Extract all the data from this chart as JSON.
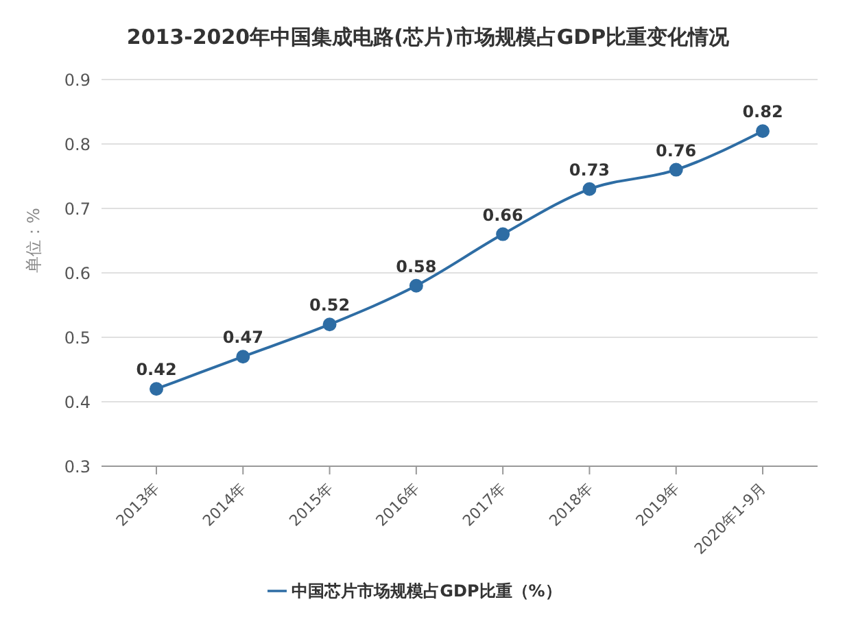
{
  "chart_data": {
    "type": "line",
    "title": "2013-2020年中国集成电路(芯片)市场规模占GDP比重变化情况",
    "ylabel": "单位：%",
    "categories": [
      "2013年",
      "2014年",
      "2015年",
      "2016年",
      "2017年",
      "2018年",
      "2019年",
      "2020年1-9月"
    ],
    "series": [
      {
        "name": "中国芯片市场规模占GDP比重（%）",
        "color": "#2e6da4",
        "values": [
          0.42,
          0.47,
          0.52,
          0.58,
          0.66,
          0.73,
          0.76,
          0.82
        ]
      }
    ],
    "ylim": [
      0.3,
      0.9
    ],
    "yticks": [
      0.3,
      0.4,
      0.5,
      0.6,
      0.7,
      0.8,
      0.9
    ],
    "grid": "y",
    "legend": "bottom",
    "marker": "circle",
    "line_style": "solid",
    "data_labels": true
  }
}
